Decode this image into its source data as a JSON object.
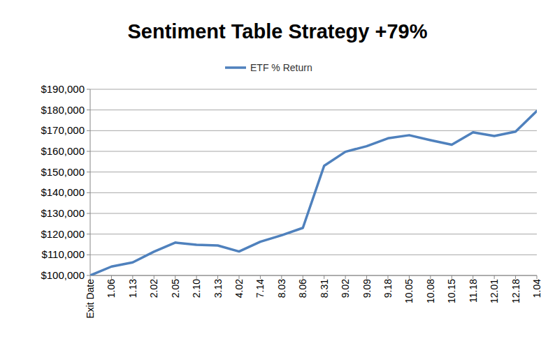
{
  "chart_data": {
    "type": "line",
    "title": "Sentiment Table Strategy +79%",
    "categories": [
      "Exit Date",
      "1.06",
      "1.13",
      "2.02",
      "2.05",
      "2.10",
      "3.13",
      "4.02",
      "7.14",
      "8.03",
      "8.06",
      "8.31",
      "9.02",
      "9.09",
      "9.18",
      "10.05",
      "10.08",
      "10.15",
      "11.18",
      "12.01",
      "12.18",
      "1.04"
    ],
    "series": [
      {
        "name": "ETF % Return",
        "color": "#4f81bd",
        "values": [
          100000,
          104300,
          106300,
          111500,
          115900,
          114800,
          114500,
          111600,
          116300,
          119400,
          123000,
          153000,
          159800,
          162500,
          166300,
          167800,
          165400,
          163200,
          169200,
          167400,
          169500,
          179500
        ]
      }
    ],
    "ylim": [
      100000,
      190000
    ],
    "yticks": [
      {
        "value": 100000,
        "label": "$100,000"
      },
      {
        "value": 110000,
        "label": "$110,000"
      },
      {
        "value": 120000,
        "label": "$120,000"
      },
      {
        "value": 130000,
        "label": "$130,000"
      },
      {
        "value": 140000,
        "label": "$140,000"
      },
      {
        "value": 150000,
        "label": "$150,000"
      },
      {
        "value": 160000,
        "label": "$160,000"
      },
      {
        "value": 170000,
        "label": "$170,000"
      },
      {
        "value": 180000,
        "label": "$180,000"
      },
      {
        "value": 190000,
        "label": "$190,000"
      }
    ],
    "grid": true,
    "legend": "top"
  }
}
